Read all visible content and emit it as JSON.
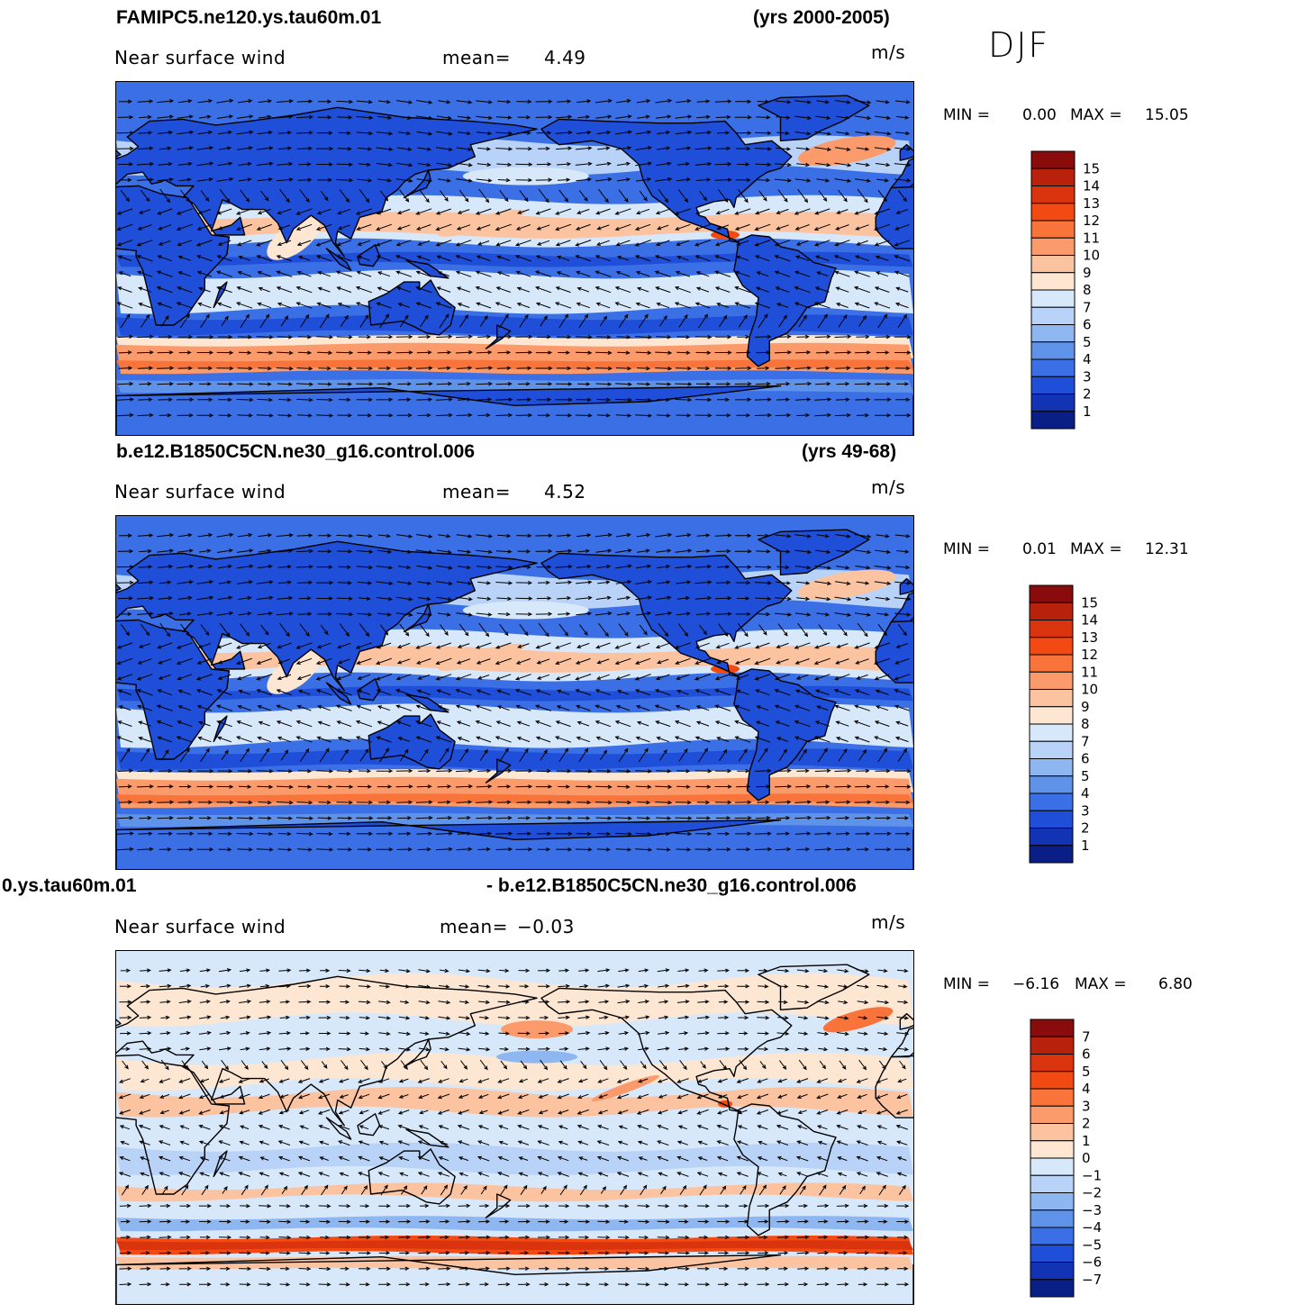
{
  "season": "DJF",
  "panels": [
    {
      "case_left": "FAMIPC5.ne120.ys.tau60m.01",
      "case_right": "(yrs 2000-2005)",
      "variable": "Near surface wind",
      "mean_label": "mean=",
      "mean_value": "4.49",
      "units": "m/s",
      "min_label": "MIN =",
      "min_value": "0.00",
      "max_label": "MAX =",
      "max_value": "15.05"
    },
    {
      "case_left": "b.e12.B1850C5CN.ne30_g16.control.006",
      "case_right": "(yrs 49-68)",
      "variable": "Near surface wind",
      "mean_label": "mean=",
      "mean_value": "4.52",
      "units": "m/s",
      "min_label": "MIN =",
      "min_value": "0.01",
      "max_label": "MAX =",
      "max_value": "12.31"
    },
    {
      "case_left": "0.ys.tau60m.01",
      "case_right": "- b.e12.B1850C5CN.ne30_g16.control.006",
      "variable": "Near surface wind",
      "mean_label": "mean=",
      "mean_value": "−0.03",
      "units": "m/s",
      "min_label": "MIN =",
      "min_value": "−6.16",
      "max_label": "MAX =",
      "max_value": "6.80"
    }
  ],
  "chart_data": [
    {
      "type": "heatmap",
      "title": "FAMIPC5.ne120.ys.tau60m.01",
      "subtitle": "Near surface wind",
      "field_mean": 4.49,
      "field_min": 0.0,
      "field_max": 15.05,
      "units": "m/s",
      "contour_levels": [
        1,
        2,
        3,
        4,
        5,
        6,
        7,
        8,
        9,
        10,
        11,
        12,
        13,
        14,
        15
      ],
      "colorbar_labels": [
        "15",
        "14",
        "13",
        "12",
        "11",
        "10",
        "9",
        "8",
        "7",
        "6",
        "5",
        "4",
        "3",
        "2",
        "1"
      ],
      "colorbar_colors": [
        "#8a0b0b",
        "#b8210b",
        "#d9340e",
        "#f24a12",
        "#f9743a",
        "#fb9a6a",
        "#fcc3a0",
        "#fde6d2",
        "#d8e8fb",
        "#b8d3f7",
        "#8eb6f0",
        "#5f93ea",
        "#3a6fe6",
        "#1f4fd8",
        "#1233b4",
        "#0a1f86"
      ],
      "region_wind_speed": {
        "southern_ocean_storm_track": 10,
        "north_atlantic": 10,
        "north_pacific_trades": 9,
        "south_pacific_trades": 7,
        "continents": 2
      }
    },
    {
      "type": "heatmap",
      "title": "b.e12.B1850C5CN.ne30_g16.control.006",
      "subtitle": "Near surface wind",
      "field_mean": 4.52,
      "field_min": 0.01,
      "field_max": 12.31,
      "units": "m/s",
      "contour_levels": [
        1,
        2,
        3,
        4,
        5,
        6,
        7,
        8,
        9,
        10,
        11,
        12,
        13,
        14,
        15
      ],
      "colorbar_labels": [
        "15",
        "14",
        "13",
        "12",
        "11",
        "10",
        "9",
        "8",
        "7",
        "6",
        "5",
        "4",
        "3",
        "2",
        "1"
      ],
      "colorbar_colors": [
        "#8a0b0b",
        "#b8210b",
        "#d9340e",
        "#f24a12",
        "#f9743a",
        "#fb9a6a",
        "#fcc3a0",
        "#fde6d2",
        "#d8e8fb",
        "#b8d3f7",
        "#8eb6f0",
        "#5f93ea",
        "#3a6fe6",
        "#1f4fd8",
        "#1233b4",
        "#0a1f86"
      ],
      "region_wind_speed": {
        "southern_ocean_storm_track": 10,
        "north_atlantic": 9,
        "north_pacific_trades": 9,
        "south_pacific_trades": 7,
        "continents": 2
      }
    },
    {
      "type": "heatmap",
      "title": "0.ys.tau60m.01 - b.e12.B1850C5CN.ne30_g16.control.006",
      "subtitle": "Near surface wind",
      "field_mean": -0.03,
      "field_min": -6.16,
      "field_max": 6.8,
      "units": "m/s",
      "contour_levels": [
        -7,
        -6,
        -5,
        -4,
        -3,
        -2,
        -1,
        0,
        1,
        2,
        3,
        4,
        5,
        6,
        7
      ],
      "colorbar_labels": [
        "7",
        "6",
        "5",
        "4",
        "3",
        "2",
        "1",
        "0",
        "−1",
        "−2",
        "−3",
        "−4",
        "−5",
        "−6",
        "−7"
      ],
      "colorbar_colors": [
        "#8a0b0b",
        "#b8210b",
        "#d9340e",
        "#f24a12",
        "#f9743a",
        "#fb9a6a",
        "#fcc3a0",
        "#fde6d2",
        "#d8e8fb",
        "#b8d3f7",
        "#8eb6f0",
        "#5f93ea",
        "#3a6fe6",
        "#1f4fd8",
        "#1233b4",
        "#0a1f86"
      ],
      "region_difference": {
        "southern_ocean_55S": 4,
        "southern_ocean_50S": -3,
        "north_atlantic": 3,
        "north_pacific": 2,
        "tropics": 0.5,
        "continents": 0
      }
    }
  ]
}
